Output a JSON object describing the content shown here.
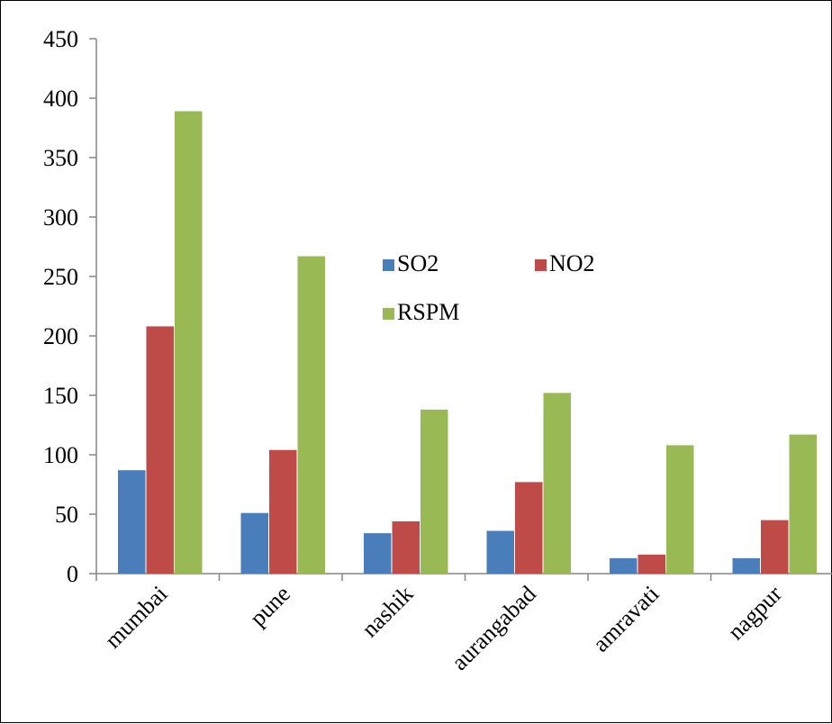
{
  "chart_data": {
    "type": "bar",
    "categories": [
      "mumbai",
      "pune",
      "nashik",
      "aurangabad",
      "amravati",
      "nagpur"
    ],
    "series": [
      {
        "name": "SO2",
        "color": "#4a7ebb",
        "values": [
          87,
          51,
          34,
          36,
          13,
          13
        ]
      },
      {
        "name": "NO2",
        "color": "#be4b48",
        "values": [
          208,
          104,
          44,
          77,
          16,
          45
        ]
      },
      {
        "name": "RSPM",
        "color": "#98b954",
        "values": [
          389,
          267,
          138,
          152,
          108,
          117
        ]
      }
    ],
    "ylim": [
      0,
      450
    ],
    "yticks": [
      0,
      50,
      100,
      150,
      200,
      250,
      300,
      350,
      400,
      450
    ],
    "title": "",
    "xlabel": "",
    "ylabel": "",
    "legend_position": "center",
    "grid": false
  }
}
